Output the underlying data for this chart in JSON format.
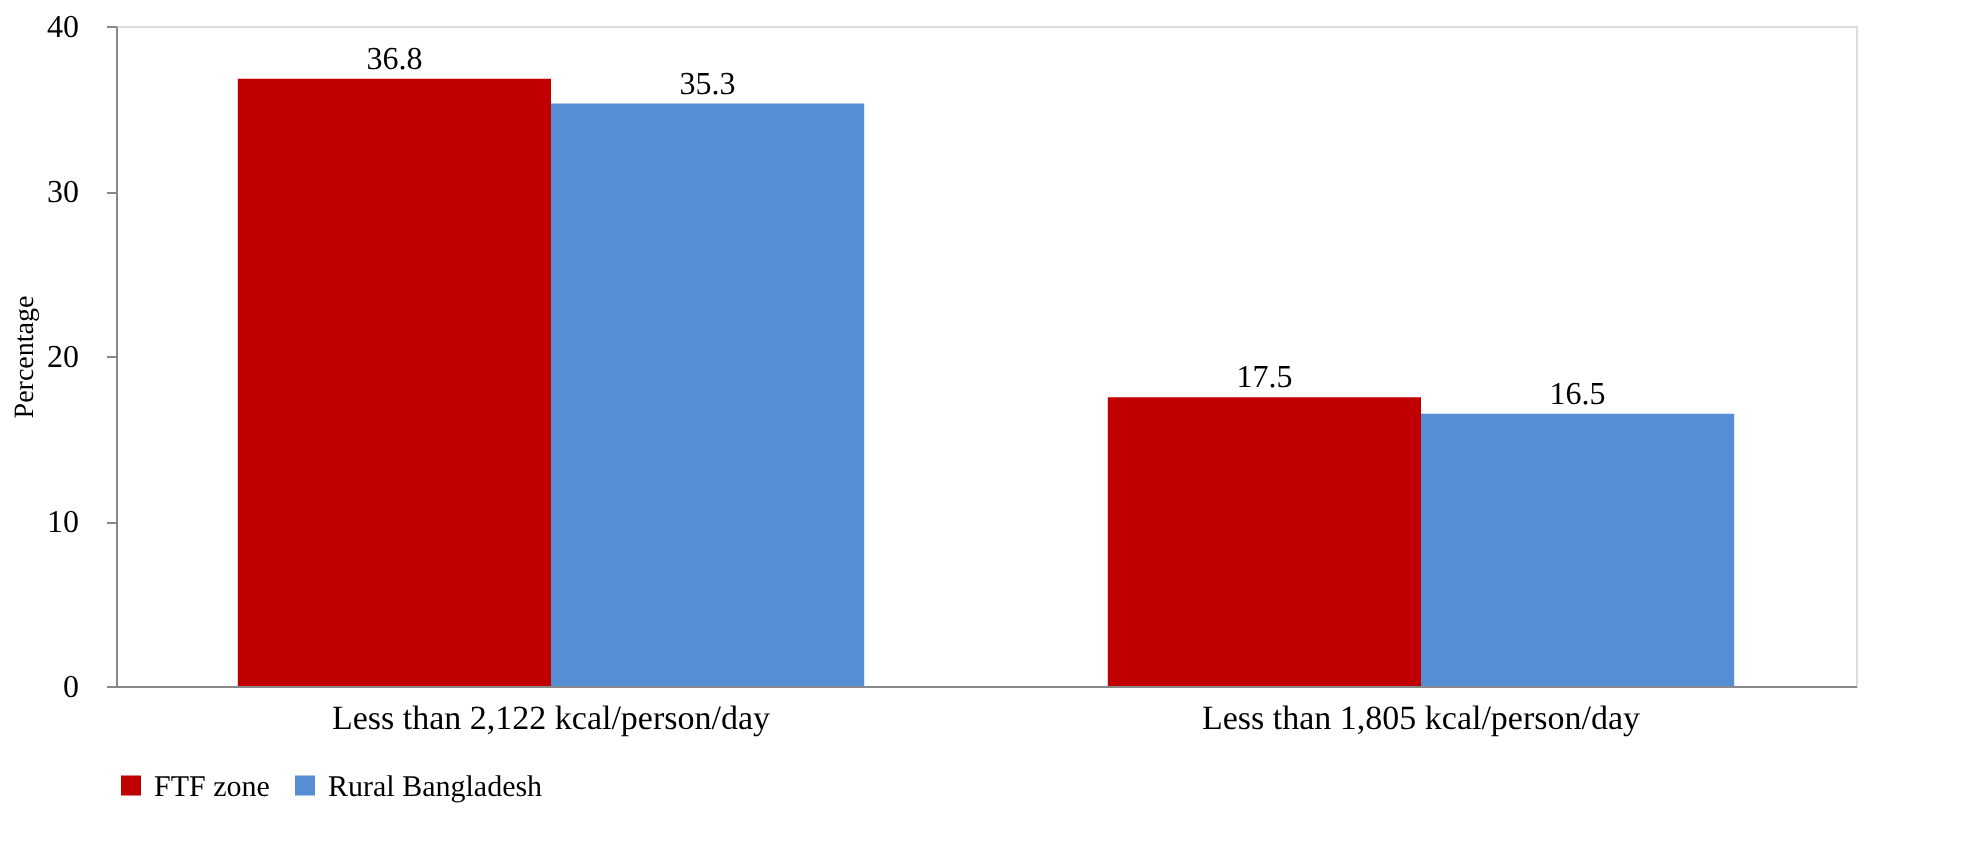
{
  "chart_data": {
    "type": "bar",
    "ylabel": "Percentage",
    "categories": [
      "Less than 2,122 kcal/person/day",
      "Less than 1,805 kcal/person/day"
    ],
    "series": [
      {
        "name": "FTF zone",
        "color": "#c00000",
        "values": [
          36.8,
          17.5
        ]
      },
      {
        "name": "Rural Bangladesh",
        "color": "#558ed5",
        "values": [
          35.3,
          16.5
        ]
      }
    ],
    "ylim": [
      0,
      40
    ],
    "yticks": [
      0,
      10,
      20,
      30,
      40
    ],
    "grid": false,
    "legend": "bottom",
    "data_labels": true
  }
}
